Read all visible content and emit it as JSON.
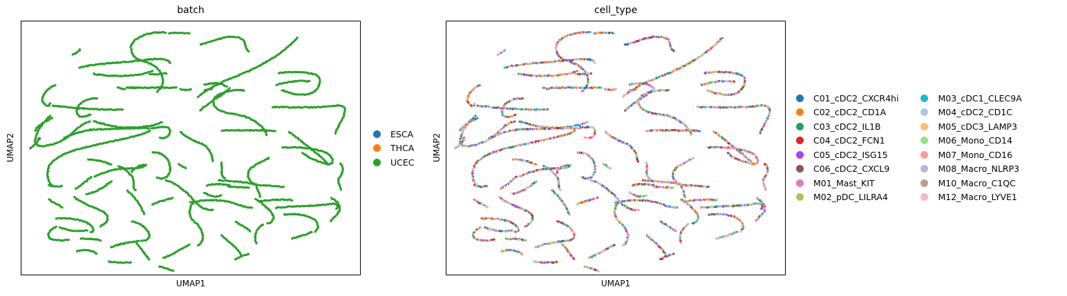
{
  "chart_data": [
    {
      "type": "scatter",
      "title": "batch",
      "xlabel": "UMAP1",
      "ylabel": "UMAP2",
      "grid": false,
      "ticks": false,
      "legend_placement": "right",
      "legend": [
        {
          "name": "ESCA",
          "color": "#1f77b4"
        },
        {
          "name": "THCA",
          "color": "#ff7f0e"
        },
        {
          "name": "UCEC",
          "color": "#2ca02c"
        }
      ],
      "point_color": "#2ca02c"
    },
    {
      "type": "scatter",
      "title": "cell_type",
      "xlabel": "UMAP1",
      "ylabel": "UMAP2",
      "grid": false,
      "ticks": false,
      "legend_placement": "right",
      "legend": [
        {
          "name": "C01_cDC2_CXCR4hi",
          "color": "#1f77b4"
        },
        {
          "name": "C02_cDC2_CD1A",
          "color": "#ff7f0e"
        },
        {
          "name": "C03_cDC2_IL1B",
          "color": "#279e68"
        },
        {
          "name": "C04_cDC2_FCN1",
          "color": "#d62728"
        },
        {
          "name": "C05_cDC2_ISG15",
          "color": "#aa40fc"
        },
        {
          "name": "C06_cDC2_CXCL9",
          "color": "#8c564b"
        },
        {
          "name": "M01_Mast_KIT",
          "color": "#e377c2"
        },
        {
          "name": "M02_pDC_LILRA4",
          "color": "#b5bd61"
        },
        {
          "name": "M03_cDC1_CLEC9A",
          "color": "#17becf"
        },
        {
          "name": "M04_cDC2_CD1C",
          "color": "#aec7e8"
        },
        {
          "name": "M05_cDC3_LAMP3",
          "color": "#ffbb78"
        },
        {
          "name": "M06_Mono_CD14",
          "color": "#98df8a"
        },
        {
          "name": "M07_Mono_CD16",
          "color": "#ff9896"
        },
        {
          "name": "M08_Macro_NLRP3",
          "color": "#c5b0d5"
        },
        {
          "name": "M10_Macro_C1QC",
          "color": "#c49c94"
        },
        {
          "name": "M12_Macro_LYVE1",
          "color": "#f7b6d2"
        }
      ]
    }
  ]
}
